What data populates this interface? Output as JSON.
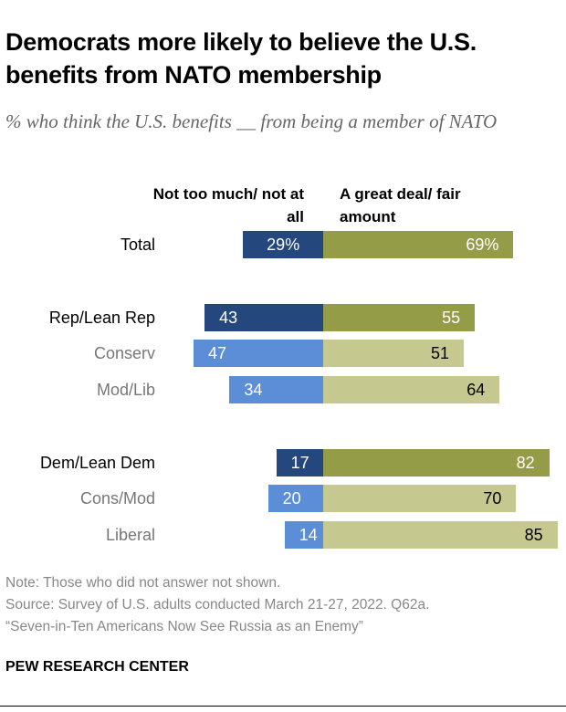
{
  "title": "Democrats more likely to believe the U.S. benefits from NATO membership",
  "subtitle": "% who think the U.S. benefits __ from being a member of NATO",
  "chart_data": {
    "type": "bar",
    "orientation": "diverging-horizontal",
    "categories": [
      "Total",
      "Rep/Lean Rep",
      "Conserv",
      "Mod/Lib",
      "Dem/Lean Dem",
      "Cons/Mod",
      "Liberal"
    ],
    "series": [
      {
        "name": "Not too much/ not at all",
        "values": [
          29,
          43,
          47,
          34,
          17,
          20,
          14
        ],
        "labels": [
          "29%",
          "43",
          "47",
          "34",
          "17",
          "20",
          "14"
        ]
      },
      {
        "name": "A great deal/ fair amount",
        "values": [
          69,
          55,
          51,
          64,
          82,
          70,
          85
        ],
        "labels": [
          "69%",
          "55",
          "51",
          "64",
          "82",
          "70",
          "85"
        ]
      }
    ],
    "row_styles": [
      "main",
      "main",
      "sub",
      "sub",
      "main",
      "sub",
      "sub"
    ],
    "colors": {
      "neg_main": "#24487d",
      "neg_sub": "#5b8ed6",
      "pos_main": "#959c48",
      "pos_sub": "#c5c98f"
    }
  },
  "notes": {
    "note": "Note: Those who did not answer not shown.",
    "source": "Source: Survey of U.S. adults conducted March 21-27, 2022. Q62a.",
    "report": "“Seven-in-Ten Americans Now See Russia as an Enemy”"
  },
  "brand": "PEW RESEARCH CENTER"
}
